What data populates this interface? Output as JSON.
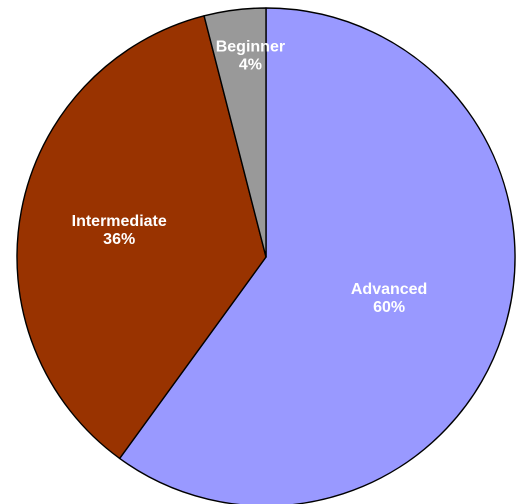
{
  "chart_data": {
    "type": "pie",
    "title": "",
    "start_angle_deg": 0,
    "direction": "clockwise",
    "slices": [
      {
        "label": "Advanced",
        "value": 60,
        "value_label": "60%",
        "color": "#9999ff"
      },
      {
        "label": "Intermediate",
        "value": 36,
        "value_label": "36%",
        "color": "#993300"
      },
      {
        "label": "Beginner",
        "value": 4,
        "value_label": "4%",
        "color": "#999999"
      }
    ]
  }
}
